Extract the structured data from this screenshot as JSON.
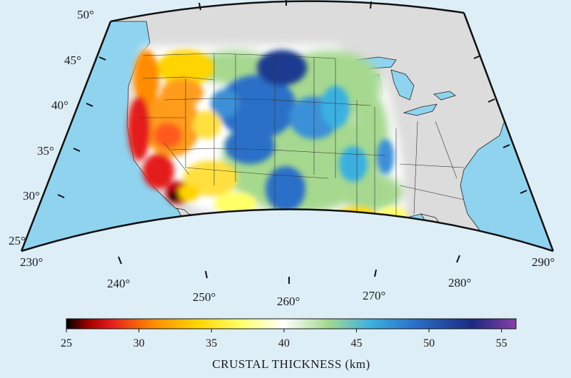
{
  "map": {
    "latitude_labels": [
      "50°",
      "45°",
      "40°",
      "35°",
      "30°",
      "25°"
    ],
    "longitude_labels": [
      "230°",
      "240°",
      "250°",
      "260°",
      "270°",
      "280°",
      "290°"
    ],
    "colors": {
      "background": "#ddeef7",
      "ocean": "#8fd3ef",
      "land": "#dcdcdc",
      "border": "#111111"
    }
  },
  "colorbar": {
    "title": "CRUSTAL THICKNESS (km)",
    "ticks": [
      "25",
      "30",
      "35",
      "40",
      "45",
      "50",
      "55"
    ],
    "range": [
      25,
      56
    ],
    "stops": [
      {
        "value": 25,
        "color": "#000000"
      },
      {
        "value": 26.5,
        "color": "#a00000"
      },
      {
        "value": 28,
        "color": "#e41a1c"
      },
      {
        "value": 31,
        "color": "#ff8c00"
      },
      {
        "value": 34,
        "color": "#ffd400"
      },
      {
        "value": 37,
        "color": "#ffff66"
      },
      {
        "value": 40,
        "color": "#ffffff"
      },
      {
        "value": 43,
        "color": "#a6d98f"
      },
      {
        "value": 46,
        "color": "#3bb0e0"
      },
      {
        "value": 49,
        "color": "#2a70c8"
      },
      {
        "value": 53,
        "color": "#1a2a80"
      },
      {
        "value": 56,
        "color": "#8a3fa8"
      }
    ]
  }
}
